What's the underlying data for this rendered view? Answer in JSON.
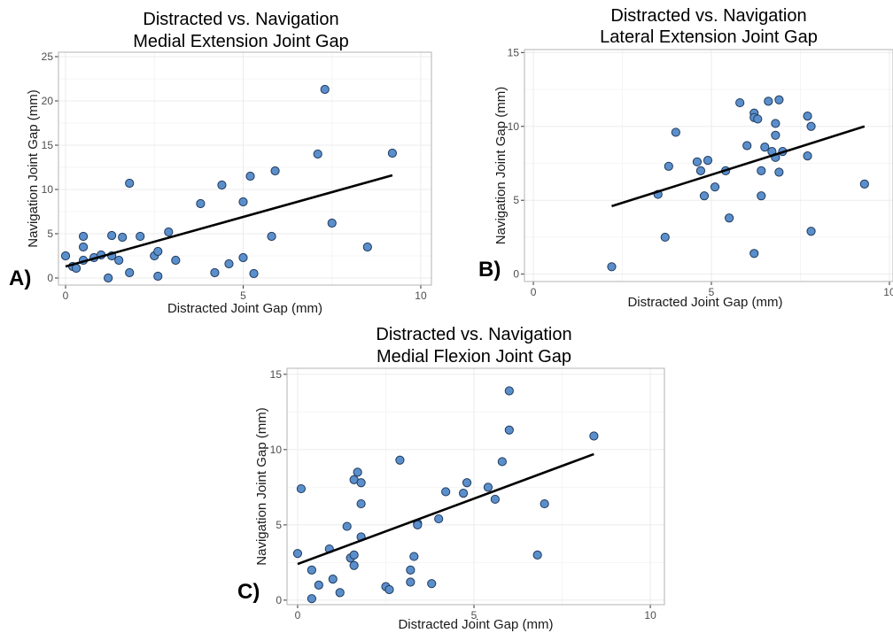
{
  "colors": {
    "point_fill": "#5B8FCB",
    "point_stroke": "#1F3A5F",
    "fit_line": "#000000",
    "frame": "#B3B3B3",
    "grid": "#EBEBEB"
  },
  "chart_data": [
    {
      "id": "A",
      "panel_label": "A)",
      "type": "scatter",
      "title": [
        "Distracted vs. Navigation",
        "Medial Extension Joint Gap"
      ],
      "xlabel": "Distracted Joint Gap (mm)",
      "ylabel": "Navigation Joint Gap (mm)",
      "xlim": [
        -0.2,
        10.3
      ],
      "ylim": [
        -0.8,
        25.5
      ],
      "xticks": [
        0,
        5,
        10
      ],
      "yticks": [
        0,
        5,
        10,
        15,
        20,
        25
      ],
      "grid": true,
      "fit_line": {
        "x": [
          0.0,
          9.2
        ],
        "y": [
          1.3,
          11.6
        ]
      },
      "points": [
        {
          "x": 0.0,
          "y": 2.5
        },
        {
          "x": 0.2,
          "y": 1.3
        },
        {
          "x": 0.3,
          "y": 1.1
        },
        {
          "x": 0.5,
          "y": 2.0
        },
        {
          "x": 0.5,
          "y": 3.5
        },
        {
          "x": 0.5,
          "y": 4.7
        },
        {
          "x": 0.8,
          "y": 2.3
        },
        {
          "x": 1.0,
          "y": 2.6
        },
        {
          "x": 1.2,
          "y": 0.0
        },
        {
          "x": 1.3,
          "y": 2.5
        },
        {
          "x": 1.3,
          "y": 4.8
        },
        {
          "x": 1.5,
          "y": 2.0
        },
        {
          "x": 1.6,
          "y": 4.6
        },
        {
          "x": 1.8,
          "y": 0.6
        },
        {
          "x": 1.8,
          "y": 10.7
        },
        {
          "x": 2.1,
          "y": 4.7
        },
        {
          "x": 2.5,
          "y": 2.5
        },
        {
          "x": 2.6,
          "y": 3.0
        },
        {
          "x": 2.6,
          "y": 0.2
        },
        {
          "x": 2.9,
          "y": 5.2
        },
        {
          "x": 3.1,
          "y": 2.0
        },
        {
          "x": 3.8,
          "y": 8.4
        },
        {
          "x": 4.2,
          "y": 0.6
        },
        {
          "x": 4.4,
          "y": 10.5
        },
        {
          "x": 4.6,
          "y": 1.6
        },
        {
          "x": 5.0,
          "y": 2.3
        },
        {
          "x": 5.0,
          "y": 8.6
        },
        {
          "x": 5.2,
          "y": 11.5
        },
        {
          "x": 5.3,
          "y": 0.5
        },
        {
          "x": 5.8,
          "y": 4.7
        },
        {
          "x": 5.9,
          "y": 12.1
        },
        {
          "x": 7.1,
          "y": 14.0
        },
        {
          "x": 7.3,
          "y": 21.3
        },
        {
          "x": 7.5,
          "y": 6.2
        },
        {
          "x": 8.5,
          "y": 3.5
        },
        {
          "x": 9.2,
          "y": 14.1
        }
      ]
    },
    {
      "id": "B",
      "panel_label": "B)",
      "type": "scatter",
      "title": [
        "Distracted vs. Navigation",
        "Lateral Extension Joint Gap"
      ],
      "xlabel": "Distracted Joint Gap (mm)",
      "ylabel": "Navigation Joint Gap (mm)",
      "xlim": [
        -0.25,
        10.1
      ],
      "ylim": [
        -0.5,
        15.2
      ],
      "xticks": [
        0,
        5,
        10
      ],
      "yticks": [
        0,
        5,
        10,
        15
      ],
      "grid": true,
      "fit_line": {
        "x": [
          2.2,
          9.3
        ],
        "y": [
          4.6,
          10.0
        ]
      },
      "points": [
        {
          "x": 2.2,
          "y": 0.5
        },
        {
          "x": 3.5,
          "y": 5.4
        },
        {
          "x": 3.7,
          "y": 2.5
        },
        {
          "x": 3.8,
          "y": 7.3
        },
        {
          "x": 4.0,
          "y": 9.6
        },
        {
          "x": 4.6,
          "y": 7.6
        },
        {
          "x": 4.7,
          "y": 7.0
        },
        {
          "x": 4.8,
          "y": 5.3
        },
        {
          "x": 4.9,
          "y": 7.7
        },
        {
          "x": 5.1,
          "y": 5.9
        },
        {
          "x": 5.4,
          "y": 7.0
        },
        {
          "x": 5.5,
          "y": 3.8
        },
        {
          "x": 5.8,
          "y": 11.6
        },
        {
          "x": 6.0,
          "y": 8.7
        },
        {
          "x": 6.2,
          "y": 10.9
        },
        {
          "x": 6.2,
          "y": 10.6
        },
        {
          "x": 6.2,
          "y": 1.4
        },
        {
          "x": 6.3,
          "y": 10.5
        },
        {
          "x": 6.4,
          "y": 7.0
        },
        {
          "x": 6.4,
          "y": 5.3
        },
        {
          "x": 6.5,
          "y": 8.6
        },
        {
          "x": 6.6,
          "y": 11.7
        },
        {
          "x": 6.7,
          "y": 8.3
        },
        {
          "x": 6.8,
          "y": 10.2
        },
        {
          "x": 6.8,
          "y": 9.4
        },
        {
          "x": 6.8,
          "y": 7.9
        },
        {
          "x": 6.9,
          "y": 11.8
        },
        {
          "x": 6.9,
          "y": 6.9
        },
        {
          "x": 7.0,
          "y": 8.3
        },
        {
          "x": 7.7,
          "y": 10.7
        },
        {
          "x": 7.7,
          "y": 8.0
        },
        {
          "x": 7.8,
          "y": 10.0
        },
        {
          "x": 7.8,
          "y": 2.9
        },
        {
          "x": 9.3,
          "y": 6.1
        }
      ]
    },
    {
      "id": "C",
      "panel_label": "C)",
      "type": "scatter",
      "title": [
        "Distracted vs. Navigation",
        "Medial Flexion Joint Gap"
      ],
      "xlabel": "Distracted Joint Gap (mm)",
      "ylabel": "Navigation Joint Gap (mm)",
      "xlim": [
        -0.3,
        10.4
      ],
      "ylim": [
        -0.3,
        15.4
      ],
      "xticks": [
        0,
        5,
        10
      ],
      "yticks": [
        0,
        5,
        10,
        15
      ],
      "grid": true,
      "fit_line": {
        "x": [
          0.0,
          8.4
        ],
        "y": [
          2.4,
          9.7
        ]
      },
      "points": [
        {
          "x": 0.0,
          "y": 3.1
        },
        {
          "x": 0.1,
          "y": 7.4
        },
        {
          "x": 0.4,
          "y": 2.0
        },
        {
          "x": 0.4,
          "y": 0.1
        },
        {
          "x": 0.6,
          "y": 1.0
        },
        {
          "x": 0.9,
          "y": 3.4
        },
        {
          "x": 1.0,
          "y": 1.4
        },
        {
          "x": 1.2,
          "y": 0.5
        },
        {
          "x": 1.4,
          "y": 4.9
        },
        {
          "x": 1.5,
          "y": 2.8
        },
        {
          "x": 1.6,
          "y": 3.0
        },
        {
          "x": 1.6,
          "y": 2.3
        },
        {
          "x": 1.6,
          "y": 8.0
        },
        {
          "x": 1.7,
          "y": 8.5
        },
        {
          "x": 1.8,
          "y": 7.8
        },
        {
          "x": 1.8,
          "y": 6.4
        },
        {
          "x": 1.8,
          "y": 4.2
        },
        {
          "x": 2.5,
          "y": 0.9
        },
        {
          "x": 2.6,
          "y": 0.7
        },
        {
          "x": 2.9,
          "y": 9.3
        },
        {
          "x": 3.2,
          "y": 2.0
        },
        {
          "x": 3.2,
          "y": 1.2
        },
        {
          "x": 3.3,
          "y": 2.9
        },
        {
          "x": 3.4,
          "y": 5.1
        },
        {
          "x": 3.4,
          "y": 5.0
        },
        {
          "x": 3.8,
          "y": 1.1
        },
        {
          "x": 4.0,
          "y": 5.4
        },
        {
          "x": 4.2,
          "y": 7.2
        },
        {
          "x": 4.7,
          "y": 7.1
        },
        {
          "x": 4.8,
          "y": 7.8
        },
        {
          "x": 5.4,
          "y": 7.5
        },
        {
          "x": 5.6,
          "y": 6.7
        },
        {
          "x": 5.8,
          "y": 9.2
        },
        {
          "x": 6.0,
          "y": 13.9
        },
        {
          "x": 6.0,
          "y": 11.3
        },
        {
          "x": 6.8,
          "y": 3.0
        },
        {
          "x": 7.0,
          "y": 6.4
        },
        {
          "x": 8.4,
          "y": 10.9
        }
      ]
    }
  ]
}
